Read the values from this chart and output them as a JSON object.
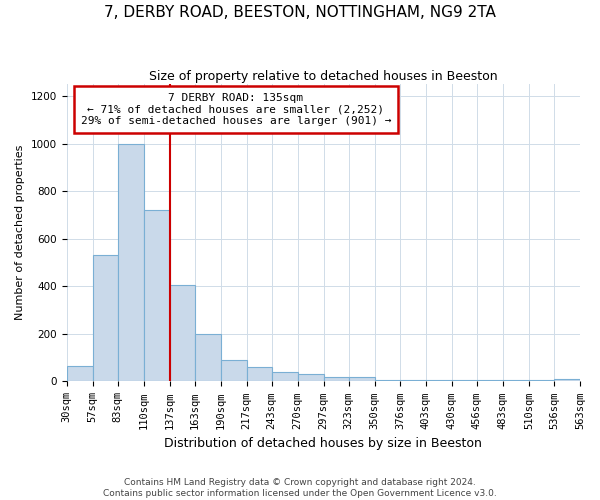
{
  "title": "7, DERBY ROAD, BEESTON, NOTTINGHAM, NG9 2TA",
  "subtitle": "Size of property relative to detached houses in Beeston",
  "xlabel": "Distribution of detached houses by size in Beeston",
  "ylabel": "Number of detached properties",
  "footer_line1": "Contains HM Land Registry data © Crown copyright and database right 2024.",
  "footer_line2": "Contains public sector information licensed under the Open Government Licence v3.0.",
  "bin_edges": [
    30,
    57,
    83,
    110,
    137,
    163,
    190,
    217,
    243,
    270,
    297,
    323,
    350,
    376,
    403,
    430,
    456,
    483,
    510,
    536,
    563
  ],
  "bar_values": [
    65,
    530,
    1000,
    720,
    405,
    198,
    90,
    60,
    40,
    30,
    20,
    20,
    5,
    5,
    5,
    5,
    5,
    5,
    5,
    10
  ],
  "bar_color": "#c9d9ea",
  "bar_edge_color": "#7aafd4",
  "property_line_x": 137,
  "annotation_title": "7 DERBY ROAD: 135sqm",
  "annotation_line2": "← 71% of detached houses are smaller (2,252)",
  "annotation_line3": "29% of semi-detached houses are larger (901) →",
  "annotation_box_color": "#ffffff",
  "annotation_box_edge": "#cc0000",
  "line_color": "#cc0000",
  "ylim": [
    0,
    1250
  ],
  "yticks": [
    0,
    200,
    400,
    600,
    800,
    1000,
    1200
  ],
  "background_color": "#ffffff",
  "grid_color": "#d0dce8",
  "title_fontsize": 11,
  "subtitle_fontsize": 9,
  "ylabel_fontsize": 8,
  "xlabel_fontsize": 9,
  "tick_fontsize": 7.5,
  "annotation_fontsize": 8,
  "footer_fontsize": 6.5
}
